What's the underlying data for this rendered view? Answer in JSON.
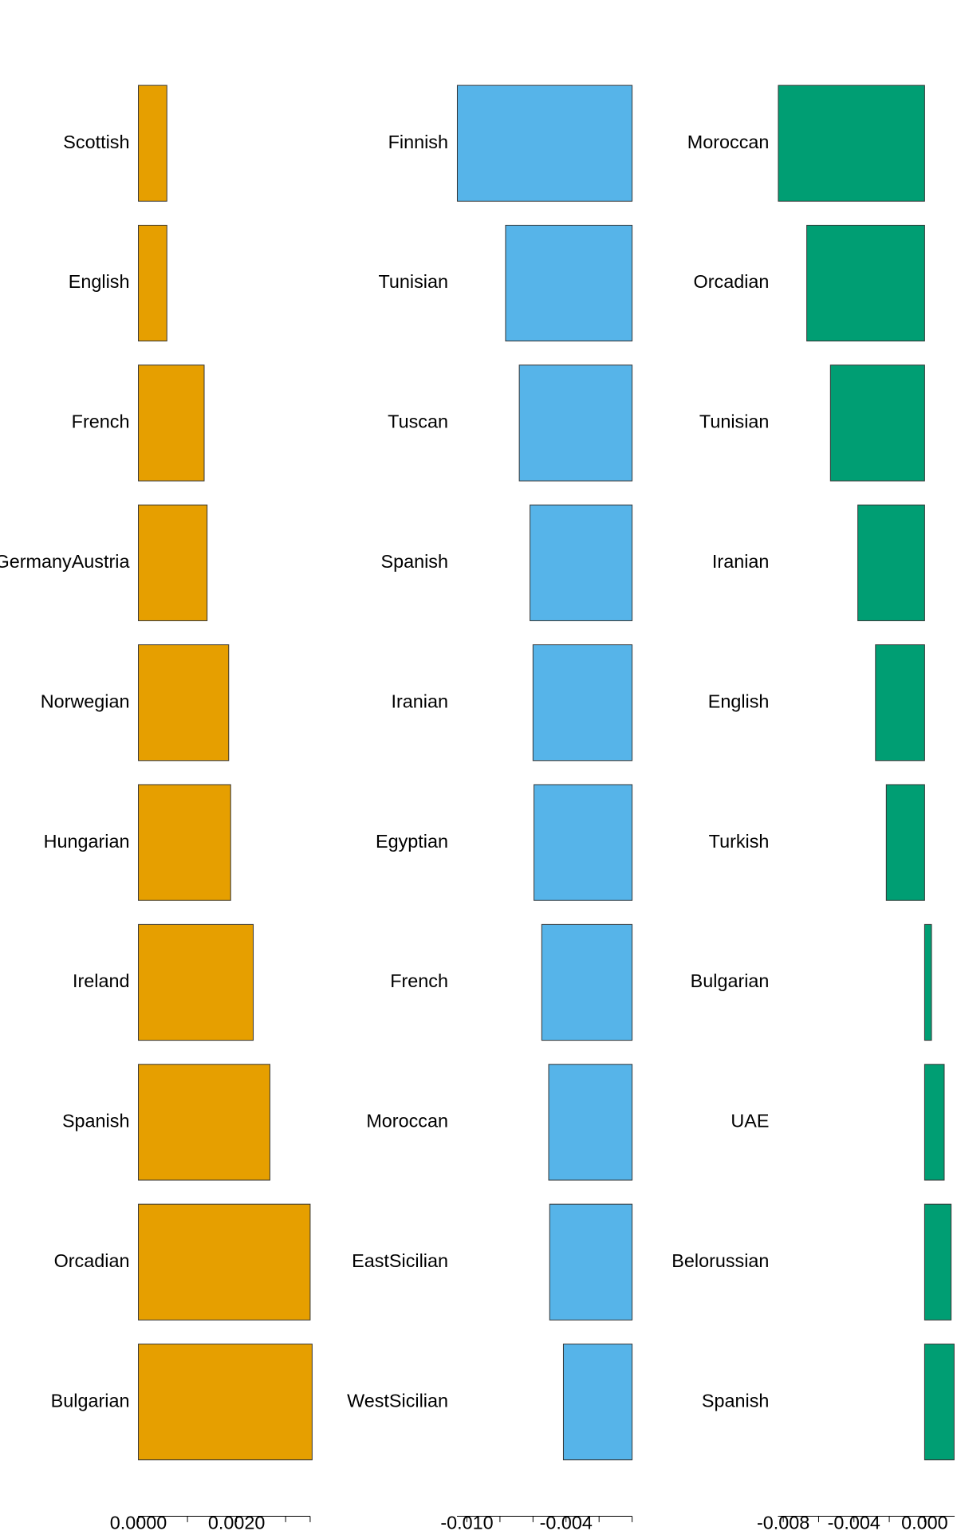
{
  "chart_data": [
    {
      "type": "bar",
      "orientation": "horizontal",
      "color": "#E69F00",
      "categories": [
        "Scottish",
        "English",
        "French",
        "GermanyAustria",
        "Norwegian",
        "Hungarian",
        "Ireland",
        "Spanish",
        "Orcadian",
        "Bulgarian"
      ],
      "values": [
        0.00058,
        0.00058,
        0.00134,
        0.0014,
        0.00184,
        0.00188,
        0.00234,
        0.00268,
        0.0035,
        0.00354
      ],
      "xlim": [
        0,
        0.0035
      ],
      "xticks": [
        {
          "value": 0,
          "label": "0.0000"
        },
        {
          "value": 0.002,
          "label": "0.0020"
        }
      ],
      "xminor_ticks": [
        0.001,
        0.003,
        0.0035
      ]
    },
    {
      "type": "bar",
      "orientation": "horizontal",
      "color": "#56B4E9",
      "categories": [
        "Finnish",
        "Tunisian",
        "Tuscan",
        "Spanish",
        "Iranian",
        "Egyptian",
        "French",
        "Moroccan",
        "EastSicilian",
        "WestSicilian"
      ],
      "values": [
        -0.01058,
        -0.00766,
        -0.00683,
        -0.00618,
        -0.006,
        -0.00594,
        -0.00547,
        -0.00505,
        -0.00499,
        -0.00416
      ],
      "xlim": [
        -0.0106,
        0
      ],
      "xticks": [
        {
          "value": -0.01,
          "label": "-0.010"
        },
        {
          "value": -0.004,
          "label": "-0.004"
        }
      ],
      "xminor_ticks": [
        -0.008,
        -0.006,
        -0.002,
        0
      ]
    },
    {
      "type": "bar",
      "orientation": "horizontal",
      "color": "#009E73",
      "categories": [
        "Moroccan",
        "Orcadian",
        "Tunisian",
        "Iranian",
        "English",
        "Turkish",
        "Bulgarian",
        "UAE",
        "Belorussian",
        "Spanish"
      ],
      "values": [
        -0.00828,
        -0.00667,
        -0.00533,
        -0.00378,
        -0.00278,
        -0.00217,
        0.00039,
        0.00111,
        0.0015,
        0.00167
      ],
      "xlim": [
        -0.0083,
        0.0017
      ],
      "xticks": [
        {
          "value": -0.008,
          "label": "-0.008"
        },
        {
          "value": -0.004,
          "label": "-0.004"
        },
        {
          "value": 0,
          "label": "0.000"
        }
      ],
      "xminor_ticks": [
        -0.006,
        -0.002
      ]
    }
  ]
}
